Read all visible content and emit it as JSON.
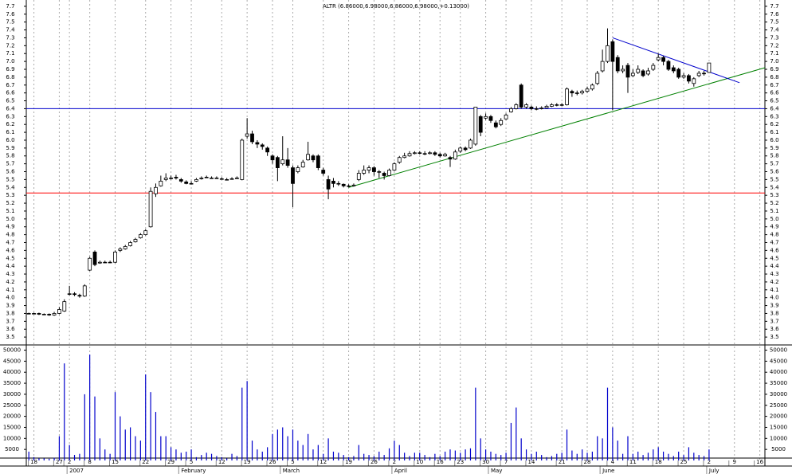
{
  "chart_data": {
    "type": "candlestick",
    "title": "ALTR (6.86000,6.98000,6.86000,6.98000,+0.13000)",
    "ylim": [
      3.4,
      7.78
    ],
    "yticks": [
      3.5,
      3.6,
      3.7,
      3.8,
      3.9,
      {
        "value": 4,
        "label": "4.0"
      },
      4.1,
      4.2,
      4.3,
      4.4,
      4.5,
      4.6,
      4.7,
      4.8,
      4.9,
      {
        "value": 5,
        "label": "5.0"
      },
      5.1,
      5.2,
      5.3,
      5.4,
      5.5,
      5.6,
      5.7,
      5.8,
      5.9,
      {
        "value": 6,
        "label": "6.0"
      },
      6.1,
      6.2,
      6.3,
      6.4,
      6.5,
      6.6,
      6.7,
      6.8,
      6.9,
      {
        "value": 7,
        "label": "7.0"
      },
      7.1,
      7.2,
      7.3,
      7.4,
      7.5,
      7.6,
      7.7
    ],
    "xlim": [
      -0.5,
      145
    ],
    "xticks": [
      {
        "value": 1,
        "label": "18"
      },
      {
        "value": 6,
        "label": "27"
      },
      {
        "value": 8,
        "label": "2"
      },
      {
        "value": 12,
        "label": "8"
      },
      {
        "value": 17,
        "label": "15"
      },
      {
        "value": 23,
        "label": "22"
      },
      {
        "value": 28,
        "label": "29"
      },
      {
        "value": 32,
        "label": "5"
      },
      {
        "value": 38,
        "label": "12"
      },
      {
        "value": 43,
        "label": "19"
      },
      {
        "value": 48,
        "label": "26"
      },
      {
        "value": 52,
        "label": "5"
      },
      {
        "value": 58,
        "label": "12"
      },
      {
        "value": 63,
        "label": "19"
      },
      {
        "value": 68,
        "label": "26"
      },
      {
        "value": 72,
        "label": "2"
      },
      {
        "value": 77,
        "label": "10"
      },
      {
        "value": 81,
        "label": "16"
      },
      {
        "value": 85,
        "label": "23"
      },
      {
        "value": 90,
        "label": "30"
      },
      {
        "value": 94,
        "label": "7"
      },
      {
        "value": 99,
        "label": "14"
      },
      {
        "value": 105,
        "label": "21"
      },
      {
        "value": 110,
        "label": "28"
      },
      {
        "value": 115,
        "label": "4"
      },
      {
        "value": 119,
        "label": "11"
      },
      {
        "value": 124,
        "label": "18"
      },
      {
        "value": 129,
        "label": "25"
      },
      {
        "value": 134,
        "label": "2"
      },
      {
        "value": 139,
        "label": "9"
      },
      {
        "value": 144,
        "label": "16"
      }
    ],
    "months": [
      {
        "value": 8,
        "label": "2007"
      },
      {
        "value": 30,
        "label": "February"
      },
      {
        "value": 50,
        "label": "March"
      },
      {
        "value": 72,
        "label": "April"
      },
      {
        "value": 91,
        "label": "May"
      },
      {
        "value": 113,
        "label": "June"
      },
      {
        "value": 134,
        "label": "July"
      }
    ],
    "open": [
      3.8,
      3.8,
      3.8,
      3.79,
      3.79,
      3.78,
      3.8,
      3.83,
      4.05,
      4.05,
      4.03,
      4.02,
      4.35,
      4.58,
      4.44,
      4.45,
      4.45,
      4.45,
      4.6,
      4.62,
      4.66,
      4.71,
      4.76,
      4.8,
      4.9,
      5.32,
      5.42,
      5.5,
      5.52,
      5.53,
      5.5,
      5.47,
      5.45,
      5.48,
      5.51,
      5.53,
      5.52,
      5.52,
      5.51,
      5.5,
      5.51,
      5.52,
      5.5,
      6.05,
      6.08,
      5.97,
      5.94,
      5.9,
      5.8,
      5.78,
      5.7,
      5.75,
      5.65,
      5.6,
      5.66,
      5.75,
      5.8,
      5.8,
      5.62,
      5.5,
      5.48,
      5.45,
      5.44,
      5.42,
      5.42,
      5.5,
      5.58,
      5.62,
      5.65,
      5.6,
      5.58,
      5.55,
      5.62,
      5.72,
      5.78,
      5.8,
      5.83,
      5.84,
      5.83,
      5.83,
      5.84,
      5.82,
      5.8,
      5.78,
      5.76,
      5.86,
      5.9,
      5.9,
      5.95,
      6.3,
      6.28,
      6.3,
      6.22,
      6.2,
      6.27,
      6.36,
      6.4,
      6.7,
      6.42,
      6.42,
      6.4,
      6.4,
      6.41,
      6.43,
      6.45,
      6.45,
      6.45,
      6.62,
      6.6,
      6.6,
      6.62,
      6.65,
      6.72,
      6.88,
      7.0,
      7.25,
      7.05,
      6.88,
      6.95,
      6.82,
      6.86,
      6.88,
      6.84,
      6.9,
      7.02,
      7.05,
      7.0,
      6.92,
      6.9,
      6.8,
      6.82,
      6.72,
      6.82,
      6.85,
      6.86
    ],
    "high": [
      3.81,
      3.81,
      3.81,
      3.8,
      3.8,
      3.82,
      3.88,
      3.98,
      4.15,
      4.07,
      4.05,
      4.17,
      4.52,
      4.6,
      4.47,
      4.47,
      4.47,
      4.6,
      4.64,
      4.67,
      4.72,
      4.76,
      4.82,
      4.87,
      5.4,
      5.45,
      5.55,
      5.58,
      5.55,
      5.56,
      5.52,
      5.49,
      5.48,
      5.52,
      5.54,
      5.55,
      5.54,
      5.54,
      5.53,
      5.52,
      5.53,
      5.54,
      6.02,
      6.28,
      6.12,
      6.0,
      5.96,
      5.92,
      5.82,
      5.8,
      6.05,
      5.9,
      5.68,
      5.68,
      5.75,
      5.98,
      5.82,
      5.82,
      5.65,
      5.55,
      5.52,
      5.48,
      5.45,
      5.44,
      5.45,
      5.62,
      5.68,
      5.68,
      5.67,
      5.62,
      5.6,
      5.64,
      5.72,
      5.8,
      5.84,
      5.86,
      5.86,
      5.86,
      5.86,
      5.86,
      5.86,
      5.84,
      5.84,
      5.8,
      5.88,
      5.92,
      5.92,
      6.02,
      6.42,
      6.32,
      6.34,
      6.32,
      6.25,
      6.28,
      6.34,
      6.42,
      6.47,
      6.72,
      6.47,
      6.44,
      6.43,
      6.43,
      6.45,
      6.47,
      6.47,
      6.47,
      6.67,
      6.64,
      6.63,
      6.64,
      6.68,
      6.72,
      6.88,
      7.15,
      7.42,
      7.28,
      7.08,
      6.95,
      6.98,
      6.9,
      6.95,
      6.9,
      6.92,
      6.98,
      7.1,
      7.07,
      7.02,
      6.95,
      6.92,
      6.85,
      6.84,
      6.8,
      6.88,
      6.88,
      6.98
    ],
    "low": [
      3.79,
      3.79,
      3.78,
      3.78,
      3.77,
      3.77,
      3.79,
      3.82,
      4.03,
      4.02,
      4.0,
      4.01,
      4.34,
      4.4,
      4.43,
      4.44,
      4.44,
      4.44,
      4.58,
      4.61,
      4.65,
      4.7,
      4.75,
      4.79,
      4.89,
      5.28,
      5.41,
      5.48,
      5.5,
      5.5,
      5.46,
      5.44,
      5.44,
      5.47,
      5.5,
      5.52,
      5.51,
      5.51,
      5.5,
      5.49,
      5.5,
      5.51,
      5.49,
      6.02,
      5.95,
      5.9,
      5.88,
      5.8,
      5.7,
      5.48,
      5.68,
      5.65,
      5.15,
      5.58,
      5.65,
      5.74,
      5.72,
      5.62,
      5.55,
      5.25,
      5.4,
      5.42,
      5.4,
      5.4,
      5.41,
      5.48,
      5.56,
      5.58,
      5.55,
      5.52,
      5.5,
      5.54,
      5.61,
      5.7,
      5.77,
      5.79,
      5.82,
      5.82,
      5.81,
      5.82,
      5.8,
      5.78,
      5.79,
      5.66,
      5.75,
      5.84,
      5.86,
      5.89,
      5.93,
      6.05,
      6.26,
      6.22,
      6.15,
      6.18,
      6.26,
      6.35,
      6.39,
      6.4,
      6.4,
      6.38,
      6.38,
      6.39,
      6.4,
      6.42,
      6.43,
      6.43,
      6.44,
      6.55,
      6.57,
      6.58,
      6.6,
      6.63,
      6.7,
      6.86,
      6.98,
      6.38,
      6.85,
      6.85,
      6.6,
      6.8,
      6.84,
      6.8,
      6.82,
      6.88,
      7.0,
      6.95,
      6.88,
      6.85,
      6.78,
      6.78,
      6.72,
      6.68,
      6.8,
      6.82,
      6.86
    ],
    "close": [
      3.8,
      3.8,
      3.79,
      3.79,
      3.78,
      3.8,
      3.85,
      3.95,
      4.05,
      4.04,
      4.02,
      4.15,
      4.5,
      4.42,
      4.45,
      4.45,
      4.45,
      4.58,
      4.62,
      4.65,
      4.7,
      4.74,
      4.8,
      4.85,
      5.35,
      5.4,
      5.48,
      5.52,
      5.52,
      5.52,
      5.48,
      5.45,
      5.45,
      5.5,
      5.52,
      5.53,
      5.52,
      5.52,
      5.51,
      5.5,
      5.51,
      5.52,
      6.0,
      6.08,
      5.98,
      5.95,
      5.92,
      5.85,
      5.75,
      5.65,
      5.75,
      5.68,
      5.45,
      5.65,
      5.72,
      5.82,
      5.75,
      5.65,
      5.58,
      5.38,
      5.45,
      5.45,
      5.42,
      5.42,
      5.43,
      5.58,
      5.62,
      5.65,
      5.6,
      5.6,
      5.55,
      5.62,
      5.7,
      5.78,
      5.8,
      5.83,
      5.84,
      5.84,
      5.83,
      5.84,
      5.82,
      5.8,
      5.82,
      5.76,
      5.85,
      5.9,
      5.88,
      6.0,
      6.42,
      6.1,
      6.3,
      6.25,
      6.17,
      6.25,
      6.32,
      6.4,
      6.45,
      6.42,
      6.45,
      6.4,
      6.4,
      6.41,
      6.43,
      6.45,
      6.45,
      6.45,
      6.65,
      6.6,
      6.6,
      6.62,
      6.65,
      6.7,
      6.85,
      7.0,
      7.2,
      7.0,
      6.88,
      6.9,
      6.8,
      6.85,
      6.9,
      6.82,
      6.88,
      6.95,
      7.05,
      7.0,
      6.9,
      6.88,
      6.8,
      6.82,
      6.75,
      6.78,
      6.85,
      6.85,
      6.98
    ],
    "volume": [
      4000,
      1500,
      1000,
      1000,
      800,
      1200,
      11000,
      44000,
      7000,
      2500,
      3000,
      30000,
      48000,
      29000,
      10000,
      5000,
      3000,
      31000,
      20000,
      14000,
      15000,
      11000,
      9000,
      39000,
      31000,
      22000,
      11000,
      11000,
      6000,
      5000,
      3500,
      4000,
      5000,
      1500,
      2500,
      3500,
      3000,
      2000,
      1500,
      1000,
      3000,
      2000,
      33000,
      36000,
      9000,
      5000,
      4000,
      6000,
      12000,
      14000,
      15000,
      11000,
      14000,
      9000,
      7000,
      12000,
      5000,
      7000,
      3000,
      10000,
      4000,
      3500,
      2500,
      1500,
      2000,
      7000,
      3000,
      2500,
      2000,
      4000,
      2500,
      5500,
      9000,
      7000,
      3500,
      2000,
      3500,
      3500,
      2500,
      1500,
      3000,
      2000,
      4000,
      5000,
      4500,
      3500,
      5000,
      5500,
      33000,
      10000,
      5000,
      4000,
      3000,
      2500,
      3500,
      17000,
      24000,
      10000,
      5000,
      3000,
      4000,
      2500,
      1500,
      2000,
      3000,
      3500,
      14000,
      4500,
      3000,
      5000,
      3500,
      4000,
      11000,
      10000,
      33000,
      15000,
      9000,
      3000,
      11000,
      3000,
      4000,
      2500,
      3500,
      5000,
      6000,
      4000,
      3000,
      2000,
      4000,
      2500,
      6000,
      3500,
      2500,
      2000,
      5000
    ],
    "volume_color": "#0000cc",
    "volume_ylim": [
      0,
      52000
    ],
    "volume_yticks": [
      5000,
      10000,
      15000,
      20000,
      25000,
      30000,
      35000,
      40000,
      45000,
      50000
    ],
    "hlines": [
      {
        "value": 6.4,
        "color": "#0000cc"
      },
      {
        "value": 5.33,
        "color": "#ff0000"
      }
    ],
    "trendlines": [
      {
        "x": [
          63,
          145
        ],
        "y": [
          5.4,
          6.92
        ],
        "color": "#008000"
      },
      {
        "x": [
          115,
          140
        ],
        "y": [
          7.3,
          6.73
        ],
        "color": "#0000cc"
      }
    ],
    "grid": true
  }
}
